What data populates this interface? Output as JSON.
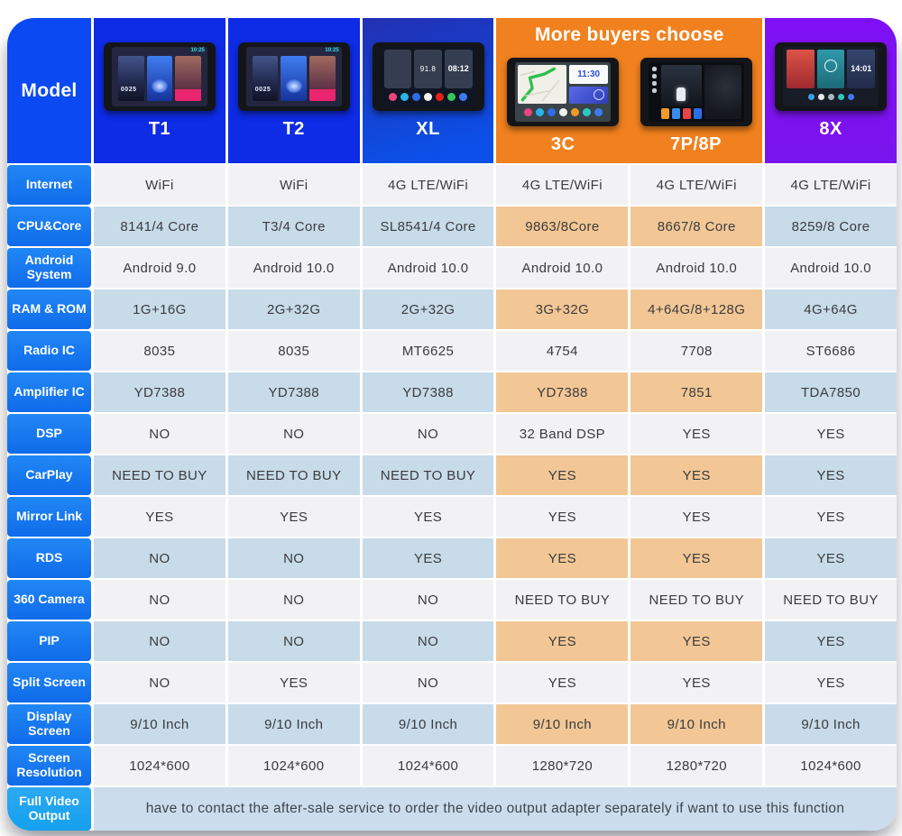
{
  "banner": {
    "title": "More buyers choose"
  },
  "header": {
    "model_label": "Model"
  },
  "models": [
    {
      "id": "t1",
      "name": "T1",
      "status_time": "10:25",
      "card_clock": "0025"
    },
    {
      "id": "t2",
      "name": "T2",
      "status_time": "10:25",
      "card_clock": "0025"
    },
    {
      "id": "xl",
      "name": "XL",
      "radio_freq": "91.8",
      "clock": "08:12"
    },
    {
      "id": "3c",
      "name": "3C",
      "clock": "11:30"
    },
    {
      "id": "7p8p",
      "name": "7P/8P"
    },
    {
      "id": "8x",
      "name": "8X",
      "clock": "14:01"
    }
  ],
  "rows": [
    {
      "label": "Internet",
      "values": [
        "WiFi",
        "WiFi",
        "4G LTE/WiFi",
        "4G LTE/WiFi",
        "4G LTE/WiFi",
        "4G LTE/WiFi"
      ]
    },
    {
      "label": "CPU&Core",
      "values": [
        "8141/4 Core",
        "T3/4 Core",
        "SL8541/4 Core",
        "9863/8Core",
        "8667/8 Core",
        "8259/8 Core"
      ]
    },
    {
      "label": "Android System",
      "values": [
        "Android 9.0",
        "Android 10.0",
        "Android 10.0",
        "Android 10.0",
        "Android 10.0",
        "Android 10.0"
      ]
    },
    {
      "label": "RAM & ROM",
      "values": [
        "1G+16G",
        "2G+32G",
        "2G+32G",
        "3G+32G",
        "4+64G/8+128G",
        "4G+64G"
      ]
    },
    {
      "label": "Radio IC",
      "values": [
        "8035",
        "8035",
        "MT6625",
        "4754",
        "7708",
        "ST6686"
      ]
    },
    {
      "label": "Amplifier IC",
      "values": [
        "YD7388",
        "YD7388",
        "YD7388",
        "YD7388",
        "7851",
        "TDA7850"
      ]
    },
    {
      "label": "DSP",
      "values": [
        "NO",
        "NO",
        "NO",
        "32 Band DSP",
        "YES",
        "YES"
      ]
    },
    {
      "label": "CarPlay",
      "values": [
        "NEED TO BUY",
        "NEED TO BUY",
        "NEED TO BUY",
        "YES",
        "YES",
        "YES"
      ]
    },
    {
      "label": "Mirror Link",
      "values": [
        "YES",
        "YES",
        "YES",
        "YES",
        "YES",
        "YES"
      ]
    },
    {
      "label": "RDS",
      "values": [
        "NO",
        "NO",
        "YES",
        "YES",
        "YES",
        "YES"
      ]
    },
    {
      "label": "360 Camera",
      "values": [
        "NO",
        "NO",
        "NO",
        "NEED TO BUY",
        "NEED TO BUY",
        "NEED TO BUY"
      ]
    },
    {
      "label": "PIP",
      "values": [
        "NO",
        "NO",
        "NO",
        "YES",
        "YES",
        "YES"
      ]
    },
    {
      "label": "Split Screen",
      "values": [
        "NO",
        "YES",
        "NO",
        "YES",
        "YES",
        "YES"
      ]
    },
    {
      "label": "Display Screen",
      "values": [
        "9/10 Inch",
        "9/10 Inch",
        "9/10 Inch",
        "9/10 Inch",
        "9/10 Inch",
        "9/10 Inch"
      ]
    },
    {
      "label": "Screen Resolution",
      "values": [
        "1024*600",
        "1024*600",
        "1024*600",
        "1280*720",
        "1280*720",
        "1024*600"
      ]
    }
  ],
  "footer": {
    "label": "Full Video Output",
    "note": "have to contact the after-sale service to order the video output adapter separately if want to use this function"
  },
  "colors": {
    "banner_orange": "#F1811E",
    "header_blue": "#0E2BE5",
    "model_cell_blue": "#0B49F2",
    "purple_8x": "#7C12F4",
    "row_label_blue": "#1778F0",
    "cell_gray": "#F2F2F4",
    "cell_light_blue": "#C7DBE9",
    "cell_orange": "#F2C795",
    "footer_note_bg": "#CBDDED"
  }
}
